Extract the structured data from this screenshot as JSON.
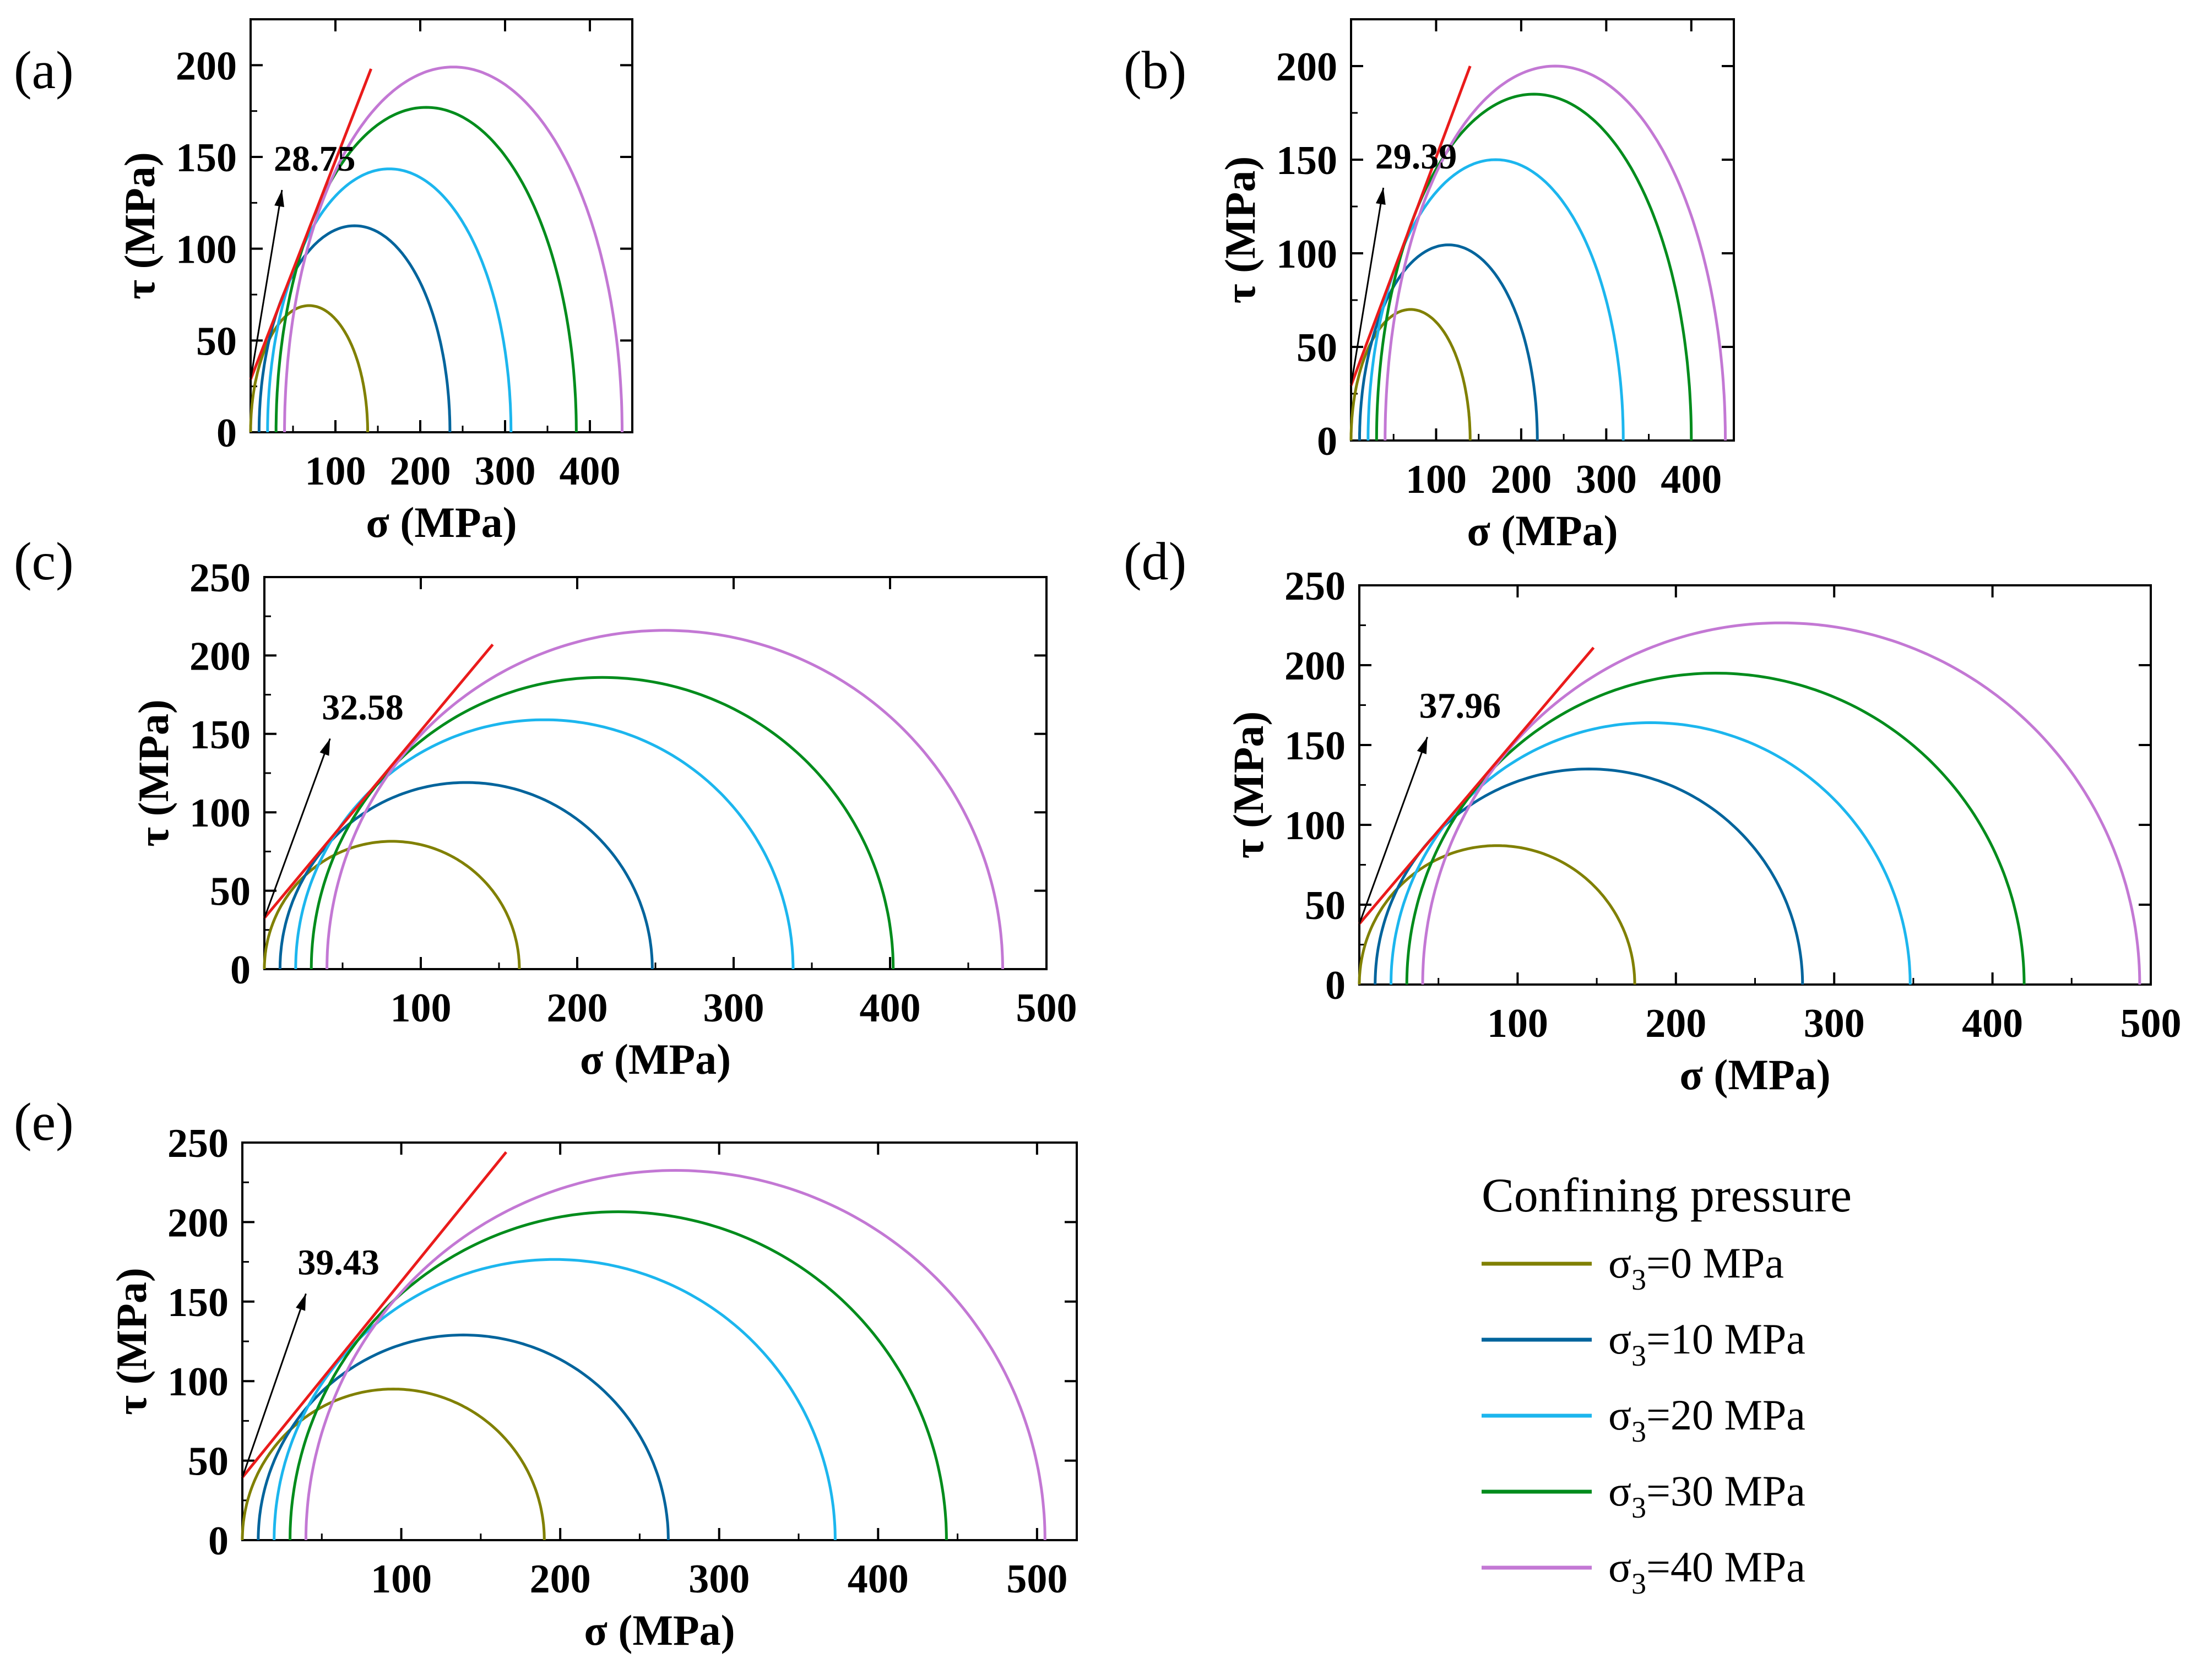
{
  "chart_data": [
    {
      "type": "mohr-circle",
      "panel": "(a)",
      "xlabel": "σ (MPa)",
      "ylabel": "τ (MPa)",
      "xlim": [
        0,
        450
      ],
      "ylim": [
        0,
        225
      ],
      "xticks": [
        100,
        200,
        300,
        400
      ],
      "yticks": [
        0,
        50,
        100,
        150,
        200
      ],
      "sigma3": [
        0,
        10,
        20,
        30,
        40
      ],
      "sigma1": [
        138,
        235,
        307,
        384,
        438
      ],
      "envelope": {
        "intercept": 28.75,
        "end": [
          142,
          198
        ]
      },
      "annotation": "28.75",
      "annotation_arrow": {
        "from": [
          0,
          28.75
        ],
        "to": [
          37,
          132
        ]
      }
    },
    {
      "type": "mohr-circle",
      "panel": "(b)",
      "xlabel": "σ (MPa)",
      "ylabel": "τ (MPa)",
      "xlim": [
        0,
        450
      ],
      "ylim": [
        0,
        225
      ],
      "xticks": [
        100,
        200,
        300,
        400
      ],
      "yticks": [
        0,
        50,
        100,
        150,
        200
      ],
      "sigma3": [
        0,
        10,
        20,
        30,
        40
      ],
      "sigma1": [
        140,
        219,
        320,
        400,
        440
      ],
      "envelope": {
        "intercept": 29.39,
        "end": [
          140,
          200
        ]
      },
      "annotation": "29.39",
      "annotation_arrow": {
        "from": [
          0,
          29.39
        ],
        "to": [
          38,
          135
        ]
      }
    },
    {
      "type": "mohr-circle",
      "panel": "(c)",
      "xlabel": "σ (MPa)",
      "ylabel": "τ (MPa)",
      "xlim": [
        0,
        500
      ],
      "ylim": [
        0,
        250
      ],
      "xticks": [
        100,
        200,
        300,
        400,
        500
      ],
      "yticks": [
        0,
        50,
        100,
        150,
        200,
        250
      ],
      "sigma3": [
        0,
        10,
        20,
        30,
        40
      ],
      "sigma1": [
        163,
        248,
        338,
        402,
        472
      ],
      "envelope": {
        "intercept": 32.58,
        "end": [
          146,
          207
        ]
      },
      "annotation": "32.58",
      "annotation_arrow": {
        "from": [
          0,
          32.58
        ],
        "to": [
          42,
          147
        ]
      }
    },
    {
      "type": "mohr-circle",
      "panel": "(d)",
      "xlabel": "σ (MPa)",
      "ylabel": "τ (MPa)",
      "xlim": [
        0,
        500
      ],
      "ylim": [
        0,
        250
      ],
      "xticks": [
        100,
        200,
        300,
        400,
        500
      ],
      "yticks": [
        0,
        50,
        100,
        150,
        200,
        250
      ],
      "sigma3": [
        0,
        10,
        20,
        30,
        40
      ],
      "sigma1": [
        174,
        280,
        348,
        420,
        493
      ],
      "envelope": {
        "intercept": 37.96,
        "end": [
          148,
          211
        ]
      },
      "annotation": "37.96",
      "annotation_arrow": {
        "from": [
          0,
          37.96
        ],
        "to": [
          43,
          155
        ]
      }
    },
    {
      "type": "mohr-circle",
      "panel": "(e)",
      "xlabel": "σ (MPa)",
      "ylabel": "τ (MPa)",
      "xlim": [
        0,
        525
      ],
      "ylim": [
        0,
        250
      ],
      "xticks": [
        100,
        200,
        300,
        400,
        500
      ],
      "yticks": [
        0,
        50,
        100,
        150,
        200,
        250
      ],
      "sigma3": [
        0,
        10,
        20,
        30,
        40
      ],
      "sigma1": [
        190,
        268,
        373,
        443,
        505
      ],
      "envelope": {
        "intercept": 39.43,
        "end": [
          166,
          244
        ]
      },
      "annotation": "39.43",
      "annotation_arrow": {
        "from": [
          0,
          39.43
        ],
        "to": [
          40,
          155
        ]
      }
    }
  ],
  "legend": {
    "title": "Confining pressure",
    "entries": [
      {
        "prefix": "σ",
        "sub": "3",
        "suffix": "=0 MPa",
        "color": "#808000"
      },
      {
        "prefix": "σ",
        "sub": "3",
        "suffix": "=10 MPa",
        "color": "#00649c"
      },
      {
        "prefix": "σ",
        "sub": "3",
        "suffix": "=20 MPa",
        "color": "#1cb6ee"
      },
      {
        "prefix": "σ",
        "sub": "3",
        "suffix": "=30 MPa",
        "color": "#008c1c"
      },
      {
        "prefix": "σ",
        "sub": "3",
        "suffix": "=40 MPa",
        "color": "#c378d4"
      }
    ]
  },
  "colors": {
    "envelope": "#ea1b1b",
    "axis": "#000000",
    "circles": [
      "#808000",
      "#00649c",
      "#1cb6ee",
      "#008c1c",
      "#c378d4"
    ]
  }
}
